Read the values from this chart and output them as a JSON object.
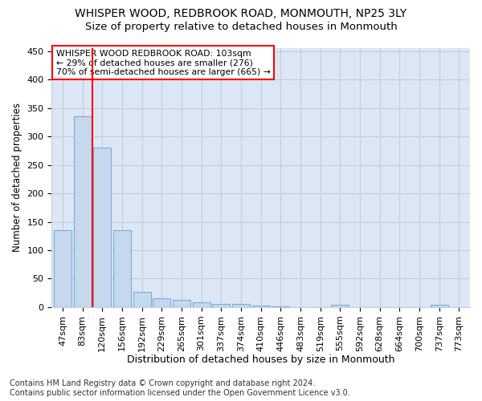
{
  "title1": "WHISPER WOOD, REDBROOK ROAD, MONMOUTH, NP25 3LY",
  "title2": "Size of property relative to detached houses in Monmouth",
  "xlabel": "Distribution of detached houses by size in Monmouth",
  "ylabel": "Number of detached properties",
  "footnote": "Contains HM Land Registry data © Crown copyright and database right 2024.\nContains public sector information licensed under the Open Government Licence v3.0.",
  "bar_labels": [
    "47sqm",
    "83sqm",
    "120sqm",
    "156sqm",
    "192sqm",
    "229sqm",
    "265sqm",
    "301sqm",
    "337sqm",
    "374sqm",
    "410sqm",
    "446sqm",
    "483sqm",
    "519sqm",
    "555sqm",
    "592sqm",
    "628sqm",
    "664sqm",
    "700sqm",
    "737sqm",
    "773sqm"
  ],
  "bar_values": [
    135,
    335,
    281,
    135,
    27,
    15,
    12,
    8,
    6,
    5,
    3,
    1,
    0,
    0,
    4,
    0,
    0,
    0,
    0,
    4,
    0
  ],
  "bar_color": "#c5d8ee",
  "bar_edge_color": "#7bafd4",
  "vline_x": 2.0,
  "vline_color": "red",
  "annotation_line1": "WHISPER WOOD REDBROOK ROAD: 103sqm",
  "annotation_line2": "← 29% of detached houses are smaller (276)",
  "annotation_line3": "70% of semi-detached houses are larger (665) →",
  "annotation_box_color": "white",
  "annotation_box_edge": "red",
  "ylim": [
    0,
    455
  ],
  "yticks": [
    0,
    50,
    100,
    150,
    200,
    250,
    300,
    350,
    400,
    450
  ],
  "plot_background": "#dce6f5",
  "grid_color": "#c0cfe0",
  "title1_fontsize": 10,
  "title2_fontsize": 9.5,
  "xlabel_fontsize": 9,
  "ylabel_fontsize": 8.5,
  "tick_fontsize": 8,
  "annot_fontsize": 7.8,
  "footnote_fontsize": 7
}
